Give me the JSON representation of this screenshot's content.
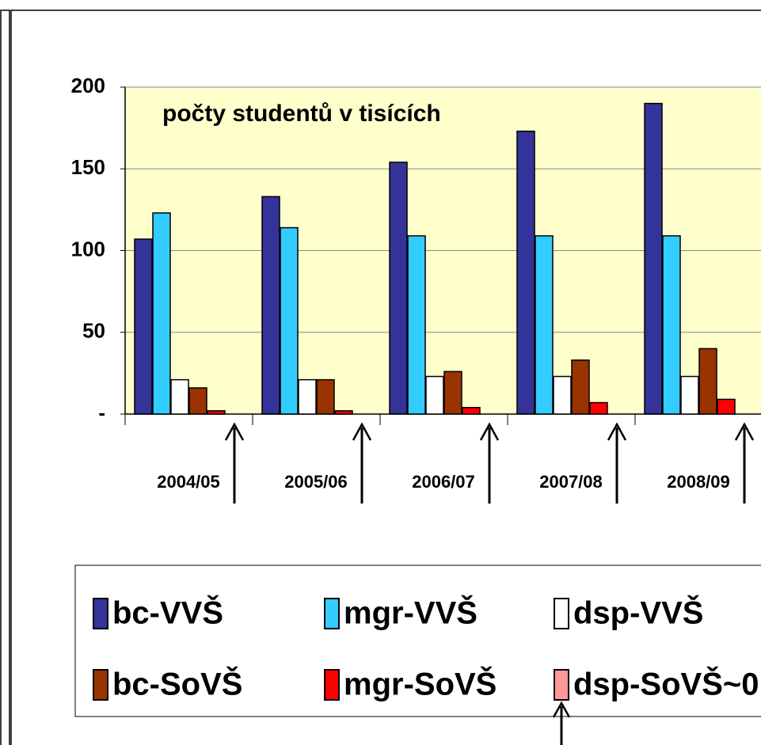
{
  "chart_data": {
    "type": "bar",
    "title": "počty studentů v tisících",
    "categories": [
      "2004/05",
      "2005/06",
      "2006/07",
      "2007/08",
      "2008/09"
    ],
    "series": [
      {
        "name": "bc-VVŠ",
        "color": "#333399",
        "values": [
          107,
          133,
          154,
          173,
          190
        ]
      },
      {
        "name": "mgr-VVŠ",
        "color": "#33ccff",
        "values": [
          123,
          114,
          109,
          109,
          109
        ]
      },
      {
        "name": "dsp-VVŠ",
        "color": "#ffffff",
        "values": [
          21,
          21,
          23,
          23,
          23
        ]
      },
      {
        "name": "bc-SoVŠ",
        "color": "#993300",
        "values": [
          16,
          21,
          26,
          33,
          40
        ]
      },
      {
        "name": "mgr-SoVŠ",
        "color": "#ff0000",
        "values": [
          2,
          2,
          4,
          7,
          9
        ]
      },
      {
        "name": "dsp-SoVŠ~0",
        "color": "#ff9999",
        "values": [
          0,
          0,
          0,
          0,
          0
        ]
      }
    ],
    "ylim": [
      0,
      200
    ],
    "yticks": [
      {
        "value": 0,
        "label": "-"
      },
      50,
      100,
      150,
      200
    ],
    "grid": true,
    "background": "#ffffcc"
  }
}
